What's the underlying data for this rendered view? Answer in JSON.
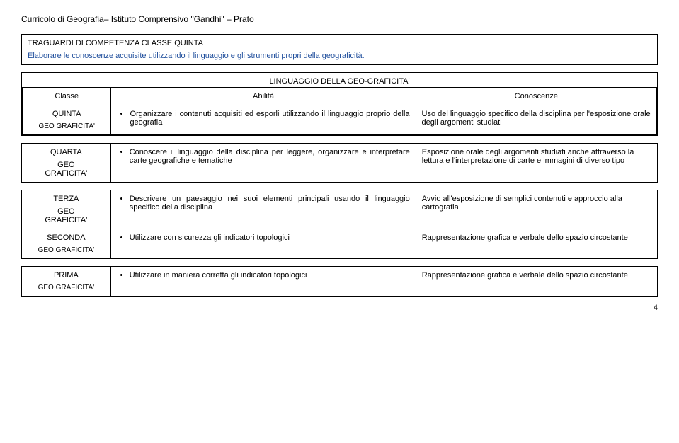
{
  "header": "Curricolo di Geografia– Istituto Comprensivo \"Gandhi\" – Prato",
  "traguardi": {
    "title": "TRAGUARDI DI COMPETENZA CLASSE QUINTA",
    "desc": "Elaborare le conoscenze acquisite utilizzando il linguaggio e gli strumenti propri della geograficità."
  },
  "section_title": "LINGUAGGIO DELLA GEO-GRAFICITA'",
  "cols": {
    "classe": "Classe",
    "abilita": "Abilità",
    "conoscenze": "Conoscenze"
  },
  "geo_label": "GEO GRAFICITA'",
  "geo_label_split1": "GEO",
  "geo_label_split2": "GRAFICITA'",
  "rows": {
    "quinta": {
      "classe": "QUINTA",
      "abilita": "Organizzare i contenuti acquisiti ed esporli utilizzando il linguaggio proprio della geografia",
      "conoscenze": "Uso del linguaggio specifico della disciplina per l'esposizione orale degli argomenti studiati"
    },
    "quarta": {
      "classe": "QUARTA",
      "abilita": "Conoscere il linguaggio della disciplina per leggere, organizzare e interpretare carte geografiche e tematiche",
      "conoscenze": "Esposizione orale degli argomenti studiati anche attraverso la lettura e l'interpretazione di carte e immagini di diverso tipo"
    },
    "terza": {
      "classe": "TERZA",
      "abilita": "Descrivere un paesaggio nei suoi elementi principali usando il linguaggio specifico della disciplina",
      "conoscenze": "Avvio all'esposizione di semplici contenuti e approccio alla cartografia"
    },
    "seconda": {
      "classe": "SECONDA",
      "abilita": "Utilizzare con sicurezza gli indicatori topologici",
      "conoscenze": "Rappresentazione grafica e verbale dello spazio circostante"
    },
    "prima": {
      "classe": "PRIMA",
      "abilita": "Utilizzare in maniera corretta gli indicatori topologici",
      "conoscenze": "Rappresentazione grafica e verbale dello spazio circostante"
    }
  },
  "page": "4"
}
